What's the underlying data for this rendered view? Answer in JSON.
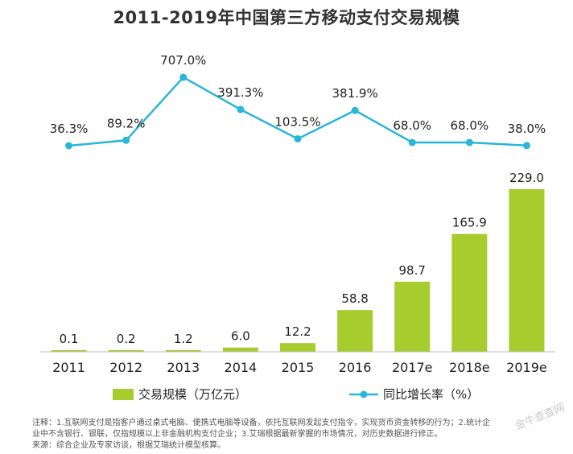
{
  "chart_data": {
    "type": "bar",
    "title": "2011-2019年中国第三方移动支付交易规模",
    "categories": [
      "2011",
      "2012",
      "2013",
      "2014",
      "2015",
      "2016",
      "2017e",
      "2018e",
      "2019e"
    ],
    "series": [
      {
        "name": "交易规模（万亿元）",
        "type": "bar",
        "color": "#a6cc2e",
        "values": [
          0.1,
          0.2,
          1.2,
          6.0,
          12.2,
          58.8,
          98.7,
          165.9,
          229.0
        ],
        "labels": [
          "0.1",
          "0.2",
          "1.2",
          "6.0",
          "12.2",
          "58.8",
          "98.7",
          "165.9",
          "229.0"
        ]
      },
      {
        "name": "同比增长率（%）",
        "type": "line",
        "color": "#29b6d8",
        "values": [
          36.3,
          89.2,
          707.0,
          391.3,
          103.5,
          381.9,
          68.0,
          68.0,
          38.0
        ],
        "labels": [
          "36.3%",
          "89.2%",
          "707.0%",
          "391.3%",
          "103.5%",
          "381.9%",
          "68.0%",
          "68.0%",
          "38.0%"
        ]
      }
    ],
    "ylim_bar": [
      0,
      229.0
    ],
    "grid": false,
    "legend_placement": "bottom"
  },
  "notes": [
    "注释：1.互联网支付是指客户通过桌式电脑、便携式电脑等设备，依托互联网发起支付指令，实现货币资金转移的行为；2.统计企",
    "业中不含银行、银联，仅指规模以上非金融机构支付企业；3.艾瑞根据最新掌握的市场情况，对历史数据进行修正。",
    "来源：综合企业及专家访谈，根据艾瑞统计模型核算。"
  ],
  "watermark": "金牛查查网"
}
